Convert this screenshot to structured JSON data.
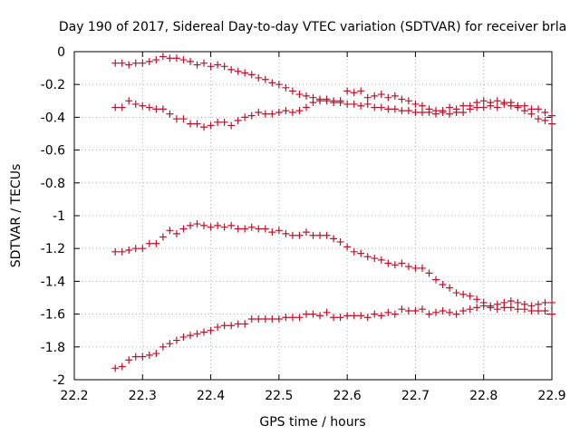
{
  "chart_data": {
    "type": "scatter",
    "title": "Day 190 of 2017, Sidereal Day-to-day VTEC variation (SDTVAR) for receiver brla",
    "xlabel": "GPS time / hours",
    "ylabel": "SDTVAR / TECUs",
    "xlim": [
      22.2,
      22.9
    ],
    "ylim": [
      -2,
      0
    ],
    "xticks": [
      22.2,
      22.3,
      22.4,
      22.5,
      22.6,
      22.7,
      22.8,
      22.9
    ],
    "yticks": [
      0,
      -0.2,
      -0.4,
      -0.6,
      -0.8,
      -1,
      -1.2,
      -1.4,
      -1.6,
      -1.8,
      -2
    ],
    "xtick_labels": [
      "22.2",
      "22.3",
      "22.4",
      "22.5",
      "22.6",
      "22.7",
      "22.8",
      "22.9"
    ],
    "ytick_labels": [
      "0",
      "-0.2",
      "-0.4",
      "-0.6",
      "-0.8",
      "-1",
      "-1.2",
      "-1.4",
      "-1.6",
      "-1.8",
      "-2"
    ],
    "marker": "+",
    "color": "#c0102a",
    "grid": true,
    "series": [
      {
        "name": "series-1",
        "points": [
          [
            22.26,
            -0.07
          ],
          [
            22.27,
            -0.07
          ],
          [
            22.28,
            -0.08
          ],
          [
            22.29,
            -0.07
          ],
          [
            22.3,
            -0.07
          ],
          [
            22.31,
            -0.06
          ],
          [
            22.32,
            -0.05
          ],
          [
            22.33,
            -0.03
          ],
          [
            22.34,
            -0.04
          ],
          [
            22.35,
            -0.04
          ],
          [
            22.36,
            -0.05
          ],
          [
            22.37,
            -0.06
          ],
          [
            22.38,
            -0.08
          ],
          [
            22.39,
            -0.07
          ],
          [
            22.4,
            -0.09
          ],
          [
            22.41,
            -0.08
          ],
          [
            22.42,
            -0.09
          ],
          [
            22.43,
            -0.11
          ],
          [
            22.44,
            -0.12
          ],
          [
            22.45,
            -0.13
          ],
          [
            22.46,
            -0.14
          ],
          [
            22.47,
            -0.16
          ],
          [
            22.48,
            -0.17
          ],
          [
            22.49,
            -0.19
          ],
          [
            22.5,
            -0.2
          ],
          [
            22.51,
            -0.22
          ],
          [
            22.52,
            -0.24
          ],
          [
            22.53,
            -0.26
          ],
          [
            22.54,
            -0.27
          ],
          [
            22.55,
            -0.28
          ],
          [
            22.56,
            -0.29
          ],
          [
            22.57,
            -0.3
          ],
          [
            22.58,
            -0.31
          ],
          [
            22.59,
            -0.31
          ],
          [
            22.6,
            -0.32
          ],
          [
            22.61,
            -0.32
          ],
          [
            22.62,
            -0.33
          ],
          [
            22.63,
            -0.32
          ],
          [
            22.64,
            -0.34
          ],
          [
            22.65,
            -0.34
          ],
          [
            22.66,
            -0.35
          ],
          [
            22.67,
            -0.35
          ],
          [
            22.68,
            -0.36
          ],
          [
            22.69,
            -0.36
          ],
          [
            22.7,
            -0.37
          ],
          [
            22.71,
            -0.37
          ],
          [
            22.72,
            -0.37
          ],
          [
            22.73,
            -0.38
          ],
          [
            22.74,
            -0.37
          ],
          [
            22.75,
            -0.38
          ],
          [
            22.76,
            -0.37
          ],
          [
            22.77,
            -0.37
          ],
          [
            22.78,
            -0.35
          ],
          [
            22.79,
            -0.34
          ],
          [
            22.8,
            -0.34
          ],
          [
            22.81,
            -0.33
          ],
          [
            22.82,
            -0.34
          ],
          [
            22.83,
            -0.32
          ],
          [
            22.84,
            -0.33
          ],
          [
            22.85,
            -0.34
          ],
          [
            22.86,
            -0.36
          ],
          [
            22.87,
            -0.38
          ],
          [
            22.88,
            -0.41
          ],
          [
            22.89,
            -0.42
          ],
          [
            22.9,
            -0.44
          ]
        ]
      },
      {
        "name": "series-2",
        "points": [
          [
            22.26,
            -0.34
          ],
          [
            22.27,
            -0.34
          ],
          [
            22.28,
            -0.3
          ],
          [
            22.29,
            -0.32
          ],
          [
            22.3,
            -0.33
          ],
          [
            22.31,
            -0.34
          ],
          [
            22.32,
            -0.35
          ],
          [
            22.33,
            -0.35
          ],
          [
            22.34,
            -0.38
          ],
          [
            22.35,
            -0.41
          ],
          [
            22.36,
            -0.41
          ],
          [
            22.37,
            -0.44
          ],
          [
            22.38,
            -0.44
          ],
          [
            22.39,
            -0.46
          ],
          [
            22.4,
            -0.45
          ],
          [
            22.41,
            -0.43
          ],
          [
            22.42,
            -0.43
          ],
          [
            22.43,
            -0.45
          ],
          [
            22.44,
            -0.42
          ],
          [
            22.45,
            -0.4
          ],
          [
            22.46,
            -0.39
          ],
          [
            22.47,
            -0.37
          ],
          [
            22.48,
            -0.38
          ],
          [
            22.49,
            -0.38
          ],
          [
            22.5,
            -0.37
          ],
          [
            22.51,
            -0.36
          ],
          [
            22.52,
            -0.37
          ],
          [
            22.53,
            -0.36
          ],
          [
            22.54,
            -0.34
          ],
          [
            22.55,
            -0.31
          ],
          [
            22.56,
            -0.3
          ],
          [
            22.57,
            -0.29
          ],
          [
            22.58,
            -0.3
          ],
          [
            22.59,
            -0.3
          ],
          [
            22.6,
            -0.24
          ],
          [
            22.61,
            -0.25
          ],
          [
            22.62,
            -0.24
          ],
          [
            22.63,
            -0.28
          ],
          [
            22.64,
            -0.27
          ],
          [
            22.65,
            -0.26
          ],
          [
            22.66,
            -0.28
          ],
          [
            22.67,
            -0.27
          ],
          [
            22.68,
            -0.29
          ],
          [
            22.69,
            -0.3
          ],
          [
            22.7,
            -0.32
          ],
          [
            22.71,
            -0.33
          ],
          [
            22.72,
            -0.35
          ],
          [
            22.73,
            -0.36
          ],
          [
            22.74,
            -0.36
          ],
          [
            22.75,
            -0.34
          ],
          [
            22.76,
            -0.35
          ],
          [
            22.77,
            -0.33
          ],
          [
            22.78,
            -0.33
          ],
          [
            22.79,
            -0.31
          ],
          [
            22.8,
            -0.3
          ],
          [
            22.81,
            -0.31
          ],
          [
            22.82,
            -0.3
          ],
          [
            22.83,
            -0.31
          ],
          [
            22.84,
            -0.31
          ],
          [
            22.85,
            -0.33
          ],
          [
            22.86,
            -0.33
          ],
          [
            22.87,
            -0.35
          ],
          [
            22.88,
            -0.35
          ],
          [
            22.89,
            -0.37
          ],
          [
            22.9,
            -0.39
          ]
        ]
      },
      {
        "name": "series-3",
        "points": [
          [
            22.26,
            -1.22
          ],
          [
            22.27,
            -1.22
          ],
          [
            22.28,
            -1.21
          ],
          [
            22.29,
            -1.2
          ],
          [
            22.3,
            -1.2
          ],
          [
            22.31,
            -1.17
          ],
          [
            22.32,
            -1.17
          ],
          [
            22.33,
            -1.13
          ],
          [
            22.34,
            -1.09
          ],
          [
            22.35,
            -1.11
          ],
          [
            22.36,
            -1.08
          ],
          [
            22.37,
            -1.06
          ],
          [
            22.38,
            -1.05
          ],
          [
            22.39,
            -1.06
          ],
          [
            22.4,
            -1.07
          ],
          [
            22.41,
            -1.06
          ],
          [
            22.42,
            -1.07
          ],
          [
            22.43,
            -1.06
          ],
          [
            22.44,
            -1.08
          ],
          [
            22.45,
            -1.08
          ],
          [
            22.46,
            -1.07
          ],
          [
            22.47,
            -1.08
          ],
          [
            22.48,
            -1.08
          ],
          [
            22.49,
            -1.1
          ],
          [
            22.5,
            -1.09
          ],
          [
            22.51,
            -1.11
          ],
          [
            22.52,
            -1.12
          ],
          [
            22.53,
            -1.12
          ],
          [
            22.54,
            -1.1
          ],
          [
            22.55,
            -1.12
          ],
          [
            22.56,
            -1.12
          ],
          [
            22.57,
            -1.12
          ],
          [
            22.58,
            -1.14
          ],
          [
            22.59,
            -1.16
          ],
          [
            22.6,
            -1.19
          ],
          [
            22.61,
            -1.22
          ],
          [
            22.62,
            -1.23
          ],
          [
            22.63,
            -1.25
          ],
          [
            22.64,
            -1.26
          ],
          [
            22.65,
            -1.27
          ],
          [
            22.66,
            -1.29
          ],
          [
            22.67,
            -1.3
          ],
          [
            22.68,
            -1.29
          ],
          [
            22.69,
            -1.31
          ],
          [
            22.7,
            -1.32
          ],
          [
            22.71,
            -1.32
          ],
          [
            22.72,
            -1.35
          ],
          [
            22.73,
            -1.39
          ],
          [
            22.74,
            -1.42
          ],
          [
            22.75,
            -1.44
          ],
          [
            22.76,
            -1.47
          ],
          [
            22.77,
            -1.48
          ],
          [
            22.78,
            -1.49
          ],
          [
            22.79,
            -1.51
          ],
          [
            22.8,
            -1.53
          ],
          [
            22.81,
            -1.55
          ],
          [
            22.82,
            -1.57
          ],
          [
            22.83,
            -1.56
          ],
          [
            22.84,
            -1.56
          ],
          [
            22.85,
            -1.57
          ],
          [
            22.86,
            -1.57
          ],
          [
            22.87,
            -1.58
          ],
          [
            22.88,
            -1.58
          ],
          [
            22.89,
            -1.58
          ],
          [
            22.9,
            -1.6
          ]
        ]
      },
      {
        "name": "series-4",
        "points": [
          [
            22.26,
            -1.93
          ],
          [
            22.27,
            -1.92
          ],
          [
            22.28,
            -1.88
          ],
          [
            22.29,
            -1.86
          ],
          [
            22.3,
            -1.86
          ],
          [
            22.31,
            -1.85
          ],
          [
            22.32,
            -1.84
          ],
          [
            22.33,
            -1.8
          ],
          [
            22.34,
            -1.78
          ],
          [
            22.35,
            -1.76
          ],
          [
            22.36,
            -1.74
          ],
          [
            22.37,
            -1.73
          ],
          [
            22.38,
            -1.72
          ],
          [
            22.39,
            -1.71
          ],
          [
            22.4,
            -1.7
          ],
          [
            22.41,
            -1.68
          ],
          [
            22.42,
            -1.67
          ],
          [
            22.43,
            -1.67
          ],
          [
            22.44,
            -1.66
          ],
          [
            22.45,
            -1.66
          ],
          [
            22.46,
            -1.63
          ],
          [
            22.47,
            -1.63
          ],
          [
            22.48,
            -1.63
          ],
          [
            22.49,
            -1.63
          ],
          [
            22.5,
            -1.63
          ],
          [
            22.51,
            -1.62
          ],
          [
            22.52,
            -1.62
          ],
          [
            22.53,
            -1.62
          ],
          [
            22.54,
            -1.6
          ],
          [
            22.55,
            -1.6
          ],
          [
            22.56,
            -1.61
          ],
          [
            22.57,
            -1.59
          ],
          [
            22.58,
            -1.62
          ],
          [
            22.59,
            -1.62
          ],
          [
            22.6,
            -1.61
          ],
          [
            22.61,
            -1.61
          ],
          [
            22.62,
            -1.61
          ],
          [
            22.63,
            -1.62
          ],
          [
            22.64,
            -1.6
          ],
          [
            22.65,
            -1.61
          ],
          [
            22.66,
            -1.59
          ],
          [
            22.67,
            -1.6
          ],
          [
            22.68,
            -1.57
          ],
          [
            22.69,
            -1.58
          ],
          [
            22.7,
            -1.58
          ],
          [
            22.71,
            -1.57
          ],
          [
            22.72,
            -1.6
          ],
          [
            22.73,
            -1.59
          ],
          [
            22.74,
            -1.58
          ],
          [
            22.75,
            -1.59
          ],
          [
            22.76,
            -1.6
          ],
          [
            22.77,
            -1.58
          ],
          [
            22.78,
            -1.57
          ],
          [
            22.79,
            -1.56
          ],
          [
            22.8,
            -1.55
          ],
          [
            22.81,
            -1.56
          ],
          [
            22.82,
            -1.54
          ],
          [
            22.83,
            -1.53
          ],
          [
            22.84,
            -1.52
          ],
          [
            22.85,
            -1.53
          ],
          [
            22.86,
            -1.54
          ],
          [
            22.87,
            -1.55
          ],
          [
            22.88,
            -1.54
          ],
          [
            22.89,
            -1.53
          ],
          [
            22.9,
            -1.53
          ]
        ]
      }
    ]
  }
}
